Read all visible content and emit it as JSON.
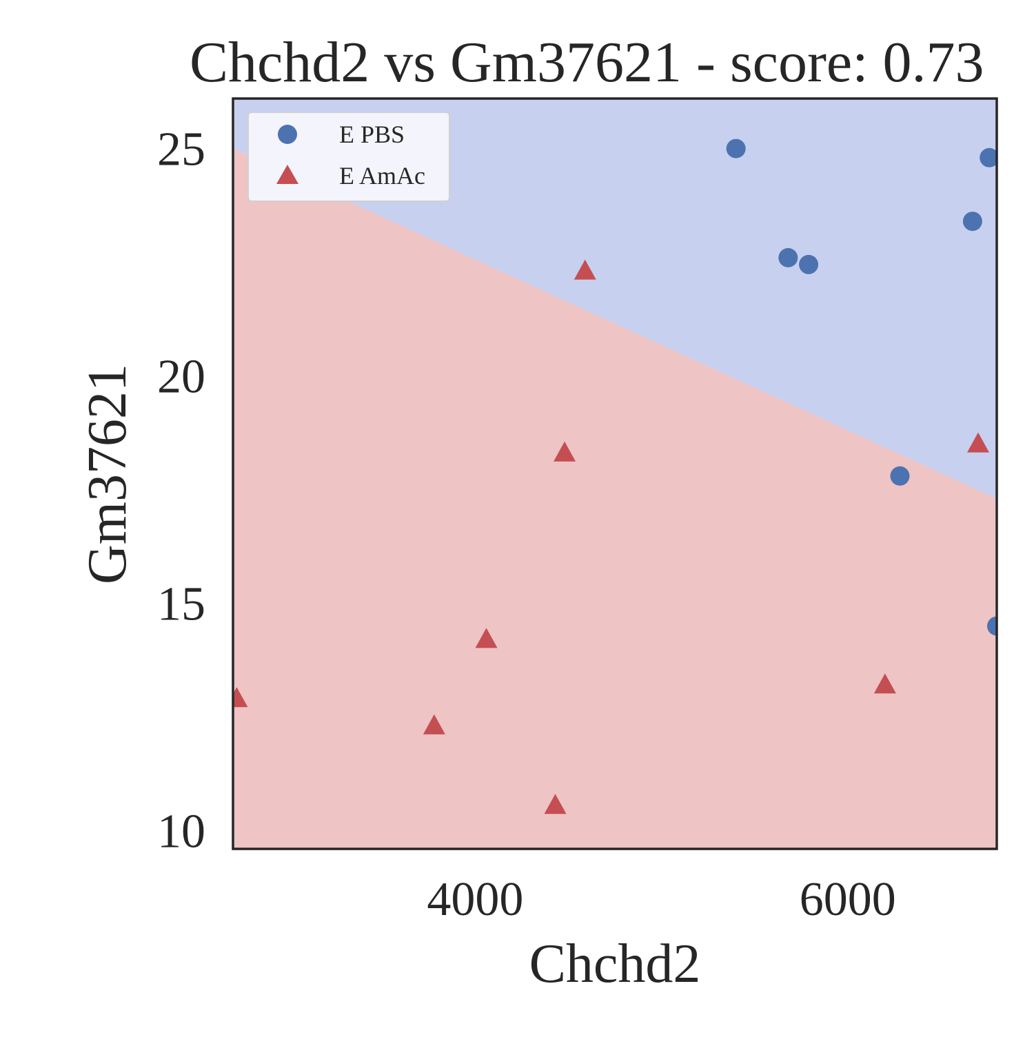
{
  "chart_data": {
    "type": "scatter",
    "title": "Chchd2 vs Gm37621 - score: 0.73",
    "xlabel": "Chchd2",
    "ylabel": "Gm37621",
    "xlim": [
      2700,
      6800
    ],
    "ylim": [
      9.6,
      26.1
    ],
    "xticks": [
      4000,
      6000
    ],
    "yticks": [
      10,
      15,
      20,
      25
    ],
    "grid": false,
    "legend_position": "top-left",
    "decision_boundary": {
      "points": [
        [
          2700,
          25.0
        ],
        [
          6800,
          17.3
        ]
      ],
      "upper_region_class": "E PBS",
      "lower_region_class": "E AmAc",
      "upper_color": "#c8d0f0",
      "lower_color": "#eec4c4"
    },
    "series": [
      {
        "name": "E PBS",
        "marker": "circle",
        "color": "#4c72b0",
        "points": [
          [
            5400,
            25.0
          ],
          [
            6760,
            24.8
          ],
          [
            6670,
            23.4
          ],
          [
            5680,
            22.6
          ],
          [
            5790,
            22.45
          ],
          [
            6280,
            17.8
          ],
          [
            6800,
            14.5
          ]
        ]
      },
      {
        "name": "E AmAc",
        "marker": "triangle",
        "color": "#c44e52",
        "points": [
          [
            4590,
            22.3
          ],
          [
            4480,
            18.3
          ],
          [
            6700,
            18.5
          ],
          [
            4060,
            14.2
          ],
          [
            6200,
            13.2
          ],
          [
            2720,
            12.9
          ],
          [
            3780,
            12.3
          ],
          [
            4430,
            10.55
          ]
        ]
      }
    ]
  }
}
